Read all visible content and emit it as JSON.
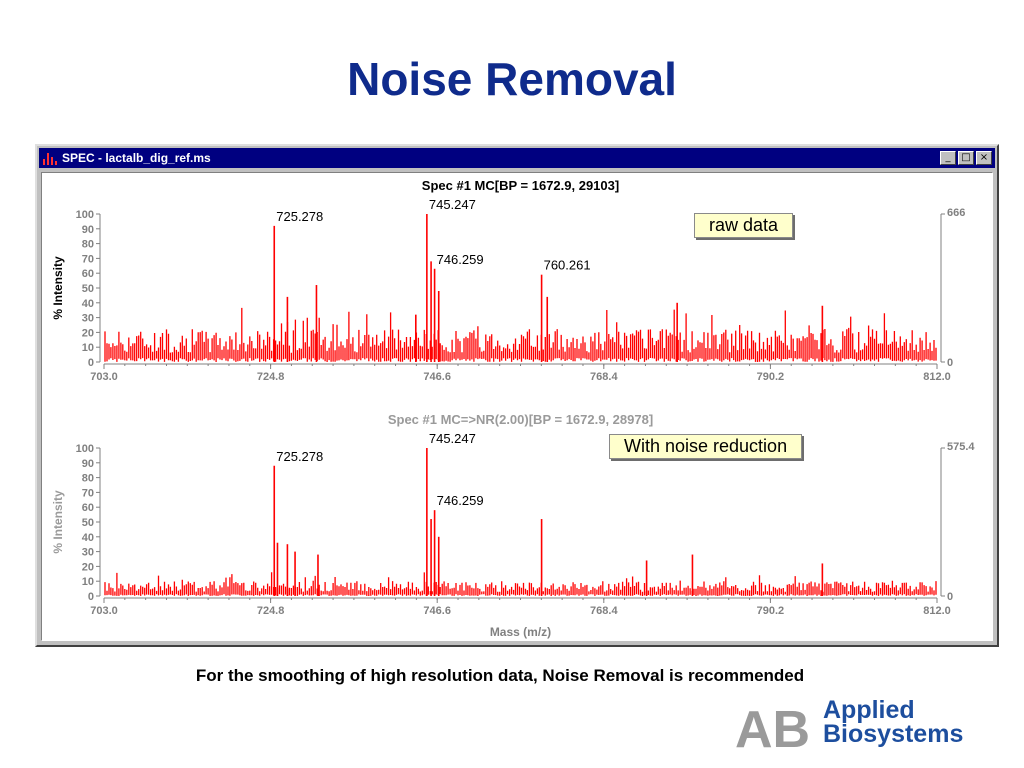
{
  "slide": {
    "title": "Noise Removal",
    "caption": "For the smoothing of high resolution data, Noise Removal is recommended",
    "logo_text_line1": "Applied",
    "logo_text_line2": "Biosystems",
    "logo_mark": "AB"
  },
  "window": {
    "title": "SPEC - lactalb_dig_ref.ms",
    "icon": "spectrum-icon",
    "controls": [
      "minimize-icon",
      "maximize-icon",
      "close-icon"
    ]
  },
  "colors": {
    "title_blue": "#0f2b8c",
    "titlebar": "#000080",
    "trace": "#ff0000",
    "axis_gray": "#808080",
    "callout_bg": "#ffffcc",
    "logo_blue": "#1d4e9e",
    "logo_gray": "#9a9a9a"
  },
  "chart_data": [
    {
      "type": "line",
      "title": "Spec #1 MC[BP = 1672.9, 29103]",
      "xlabel": "",
      "ylabel": "% Intensity",
      "xlim": [
        703.0,
        812.0
      ],
      "ylim": [
        0,
        100
      ],
      "x_ticks": [
        "703.0",
        "724.8",
        "746.6",
        "768.4",
        "790.2",
        "812.0"
      ],
      "y_ticks": [
        "0",
        "10",
        "20",
        "30",
        "40",
        "50",
        "60",
        "70",
        "80",
        "90",
        "100"
      ],
      "right_axis_labels": [
        "666",
        "0"
      ],
      "annotation": "raw data",
      "noise_level": 18,
      "series": [
        {
          "values": [],
          "peaks": [
            {
              "x": 725.278,
              "y": 92,
              "label": "725.278"
            },
            {
              "x": 745.247,
              "y": 100,
              "label": "745.247"
            },
            {
              "x": 746.259,
              "y": 63,
              "label": "746.259"
            },
            {
              "x": 760.261,
              "y": 59,
              "label": "760.261"
            },
            {
              "x": 727.0,
              "y": 44,
              "label": ""
            },
            {
              "x": 745.8,
              "y": 68,
              "label": ""
            },
            {
              "x": 746.8,
              "y": 48,
              "label": ""
            },
            {
              "x": 730.8,
              "y": 52,
              "label": ""
            },
            {
              "x": 743.8,
              "y": 32,
              "label": ""
            },
            {
              "x": 778.0,
              "y": 40,
              "label": ""
            },
            {
              "x": 761.0,
              "y": 44,
              "label": ""
            },
            {
              "x": 797.0,
              "y": 38,
              "label": ""
            }
          ]
        }
      ]
    },
    {
      "type": "line",
      "title": "Spec #1 MC=>NR(2.00)[BP = 1672.9, 28978]",
      "xlabel": "Mass (m/z)",
      "ylabel": "% Intensity",
      "xlim": [
        703.0,
        812.0
      ],
      "ylim": [
        0,
        100
      ],
      "x_ticks": [
        "703.0",
        "724.8",
        "746.6",
        "768.4",
        "790.2",
        "812.0"
      ],
      "y_ticks": [
        "0",
        "10",
        "20",
        "30",
        "40",
        "50",
        "60",
        "70",
        "80",
        "90",
        "100"
      ],
      "right_axis_labels": [
        "575.4",
        "0"
      ],
      "annotation": "With noise reduction",
      "noise_level": 8,
      "series": [
        {
          "values": [],
          "peaks": [
            {
              "x": 725.278,
              "y": 88,
              "label": "725.278"
            },
            {
              "x": 745.247,
              "y": 100,
              "label": "745.247"
            },
            {
              "x": 746.259,
              "y": 58,
              "label": "746.259"
            },
            {
              "x": 760.261,
              "y": 52,
              "label": ""
            },
            {
              "x": 725.7,
              "y": 36,
              "label": ""
            },
            {
              "x": 727.0,
              "y": 35,
              "label": ""
            },
            {
              "x": 728.0,
              "y": 30,
              "label": ""
            },
            {
              "x": 745.8,
              "y": 52,
              "label": ""
            },
            {
              "x": 746.8,
              "y": 40,
              "label": ""
            },
            {
              "x": 731.0,
              "y": 28,
              "label": ""
            },
            {
              "x": 774.0,
              "y": 24,
              "label": ""
            },
            {
              "x": 780.0,
              "y": 28,
              "label": ""
            },
            {
              "x": 797.0,
              "y": 22,
              "label": ""
            }
          ]
        }
      ]
    }
  ]
}
